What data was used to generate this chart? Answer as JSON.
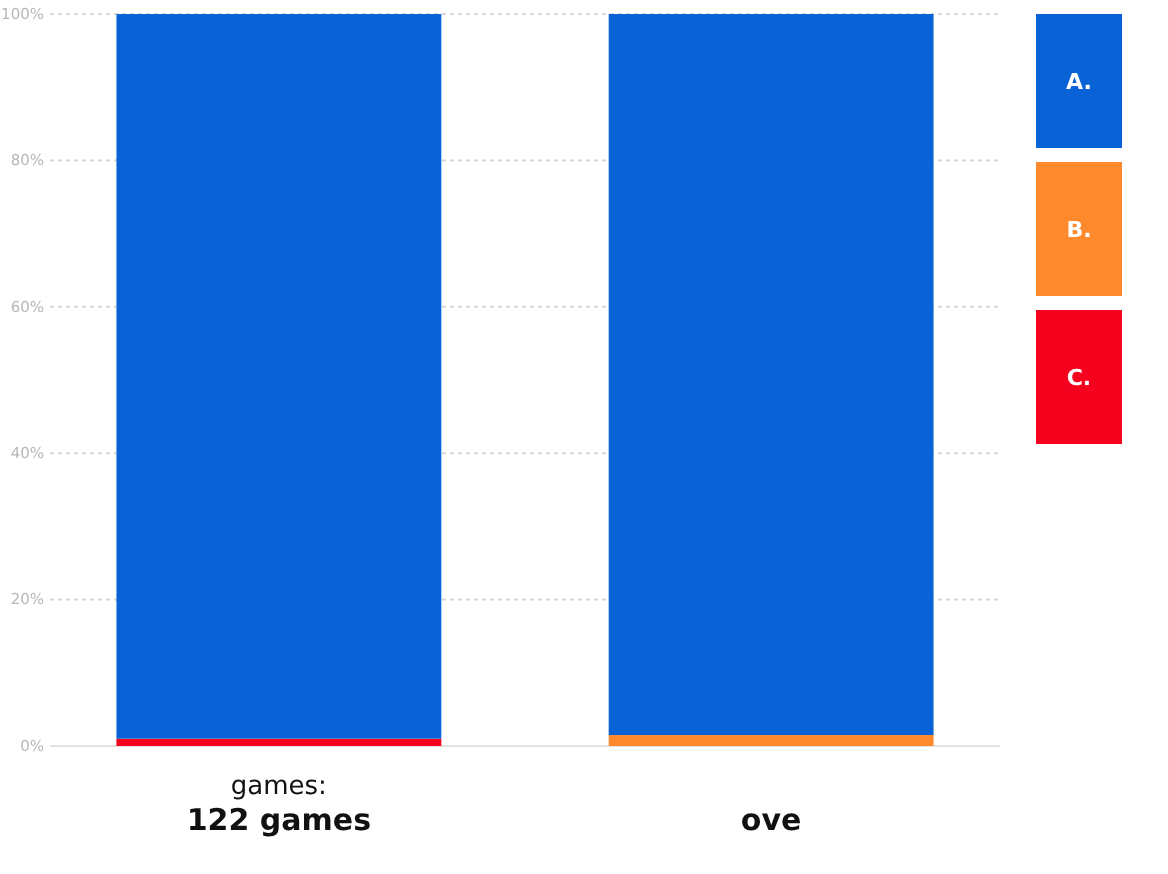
{
  "chart_data": {
    "type": "bar",
    "stacked": true,
    "categories": [
      "games:\n122 games",
      "ove"
    ],
    "series": [
      {
        "name": "C.",
        "color": "#f5021e",
        "values": [
          1,
          null
        ]
      },
      {
        "name": "B.",
        "color": "#ff8a2e",
        "values": [
          null,
          1.5
        ]
      },
      {
        "name": "A.",
        "color": "#0a63d6",
        "values": [
          99,
          98.5
        ]
      }
    ],
    "ylim": [
      0,
      100
    ],
    "yticks": [
      {
        "value": 0,
        "label": "0%"
      },
      {
        "value": 20,
        "label": "20%"
      },
      {
        "value": 40,
        "label": "40%"
      },
      {
        "value": 60,
        "label": "60%"
      },
      {
        "value": 80,
        "label": "80%"
      },
      {
        "value": 100,
        "label": "100%"
      }
    ],
    "grid": "y",
    "legend": "right"
  }
}
